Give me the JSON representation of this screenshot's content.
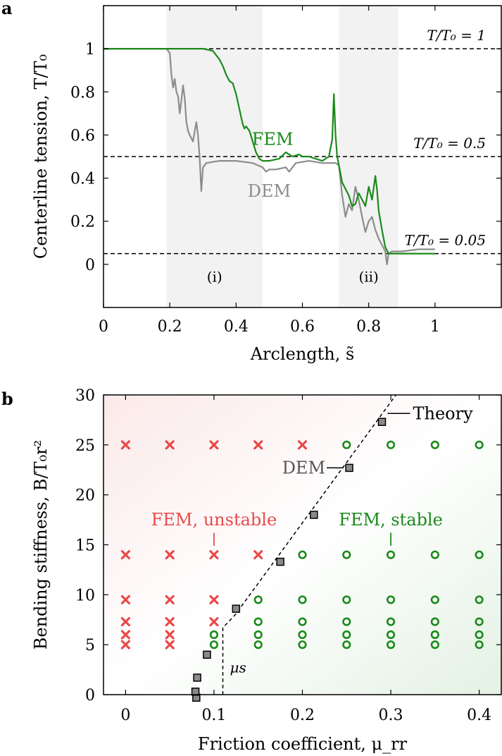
{
  "chart_data": [
    {
      "id": "a",
      "type": "line",
      "panel_label": "a",
      "xlabel": "Arclength, s̃",
      "ylabel": "Centerline tension, T/T₀",
      "xlim": [
        0,
        1.2
      ],
      "ylim": [
        -0.2,
        1.2
      ],
      "xticks": [
        0,
        0.2,
        0.4,
        0.6,
        0.8,
        1
      ],
      "xtick_labels": [
        "0",
        "0.2",
        "0.4",
        "0.6",
        "0.8",
        "1"
      ],
      "yticks": [
        0,
        0.2,
        0.4,
        0.6,
        0.8,
        1
      ],
      "ytick_labels": [
        "0",
        "0.2",
        "0.4",
        "0.6",
        "0.8",
        "1"
      ],
      "shaded_regions": [
        {
          "label": "(i)",
          "x0": 0.19,
          "x1": 0.48
        },
        {
          "label": "(ii)",
          "x0": 0.71,
          "x1": 0.89
        }
      ],
      "reference_lines": [
        {
          "y": 1,
          "label": "T/T₀ = 1"
        },
        {
          "y": 0.5,
          "label": "T/T₀ = 0.5"
        },
        {
          "y": 0.05,
          "label": "T/T₀ = 0.05"
        }
      ],
      "series": [
        {
          "name": "FEM",
          "color": "#1a8a1a",
          "x": [
            0,
            0.1,
            0.2,
            0.3,
            0.33,
            0.35,
            0.36,
            0.37,
            0.38,
            0.39,
            0.4,
            0.41,
            0.42,
            0.425,
            0.43,
            0.44,
            0.45,
            0.46,
            0.47,
            0.48,
            0.5,
            0.53,
            0.55,
            0.57,
            0.59,
            0.6,
            0.62,
            0.64,
            0.66,
            0.68,
            0.69,
            0.695,
            0.7,
            0.705,
            0.71,
            0.72,
            0.74,
            0.75,
            0.76,
            0.77,
            0.78,
            0.79,
            0.8,
            0.81,
            0.82,
            0.825,
            0.83,
            0.84,
            0.85,
            0.86,
            0.9,
            1.0
          ],
          "values": [
            1,
            1,
            1,
            1,
            0.99,
            0.95,
            0.92,
            0.88,
            0.85,
            0.84,
            0.79,
            0.72,
            0.65,
            0.63,
            0.64,
            0.62,
            0.57,
            0.52,
            0.49,
            0.48,
            0.48,
            0.49,
            0.52,
            0.5,
            0.51,
            0.5,
            0.5,
            0.49,
            0.48,
            0.5,
            0.58,
            0.79,
            0.6,
            0.5,
            0.46,
            0.38,
            0.32,
            0.27,
            0.28,
            0.33,
            0.3,
            0.27,
            0.36,
            0.3,
            0.41,
            0.35,
            0.25,
            0.16,
            0.08,
            0.05,
            0.05,
            0.05
          ]
        },
        {
          "name": "DEM",
          "color": "#8c8c8c",
          "x": [
            0,
            0.19,
            0.2,
            0.205,
            0.21,
            0.215,
            0.22,
            0.225,
            0.23,
            0.235,
            0.24,
            0.245,
            0.25,
            0.255,
            0.26,
            0.27,
            0.28,
            0.285,
            0.29,
            0.295,
            0.3,
            0.31,
            0.35,
            0.4,
            0.45,
            0.48,
            0.49,
            0.5,
            0.52,
            0.55,
            0.56,
            0.58,
            0.62,
            0.66,
            0.7,
            0.71,
            0.72,
            0.73,
            0.74,
            0.75,
            0.76,
            0.77,
            0.78,
            0.79,
            0.8,
            0.81,
            0.82,
            0.83,
            0.84,
            0.85,
            0.855,
            0.86,
            0.87,
            0.9,
            0.95,
            1.0
          ],
          "values": [
            1,
            1,
            0.98,
            0.88,
            0.82,
            0.86,
            0.8,
            0.78,
            0.7,
            0.76,
            0.83,
            0.77,
            0.66,
            0.62,
            0.6,
            0.57,
            0.66,
            0.6,
            0.5,
            0.34,
            0.45,
            0.47,
            0.48,
            0.48,
            0.47,
            0.45,
            0.43,
            0.44,
            0.44,
            0.45,
            0.43,
            0.47,
            0.48,
            0.47,
            0.47,
            0.46,
            0.32,
            0.22,
            0.28,
            0.25,
            0.36,
            0.3,
            0.22,
            0.15,
            0.2,
            0.22,
            0.16,
            0.12,
            0.09,
            0.06,
            0.0,
            0.05,
            0.06,
            0.06,
            0.07,
            0.07
          ]
        }
      ],
      "annotations": [
        {
          "text": "FEM",
          "x": 0.51,
          "y": 0.58,
          "color": "#1a8a1a"
        },
        {
          "text": "DEM",
          "x": 0.5,
          "y": 0.34,
          "color": "#8c8c8c"
        }
      ]
    },
    {
      "id": "b",
      "type": "scatter",
      "panel_label": "b",
      "xlabel": "Friction coefficient, μ_rr",
      "ylabel": "Bending stiffness, B/T₀r²",
      "xlim": [
        -0.025,
        0.425
      ],
      "ylim": [
        0,
        30
      ],
      "xticks": [
        0,
        0.1,
        0.2,
        0.3,
        0.4
      ],
      "xtick_labels": [
        "0",
        "0.1",
        "0.2",
        "0.3",
        "0.4"
      ],
      "yticks": [
        0,
        5,
        10,
        15,
        20,
        25,
        30
      ],
      "ytick_labels": [
        "0",
        "5",
        "10",
        "15",
        "20",
        "25",
        "30"
      ],
      "series": [
        {
          "name": "FEM, unstable",
          "marker": "x",
          "color": "#e84a4a",
          "points": [
            [
              0,
              25
            ],
            [
              0.05,
              25
            ],
            [
              0.1,
              25
            ],
            [
              0.15,
              25
            ],
            [
              0.2,
              25
            ],
            [
              0,
              14
            ],
            [
              0.05,
              14
            ],
            [
              0.1,
              14
            ],
            [
              0.15,
              14
            ],
            [
              0,
              9.5
            ],
            [
              0.05,
              9.5
            ],
            [
              0.1,
              9.5
            ],
            [
              0,
              7.3
            ],
            [
              0.05,
              7.3
            ],
            [
              0.1,
              7.3
            ],
            [
              0,
              6
            ],
            [
              0.05,
              6
            ],
            [
              0,
              5
            ],
            [
              0.05,
              5
            ]
          ]
        },
        {
          "name": "FEM, stable",
          "marker": "o",
          "color": "#1a8a1a",
          "points": [
            [
              0.25,
              25
            ],
            [
              0.3,
              25
            ],
            [
              0.35,
              25
            ],
            [
              0.4,
              25
            ],
            [
              0.2,
              14
            ],
            [
              0.25,
              14
            ],
            [
              0.3,
              14
            ],
            [
              0.35,
              14
            ],
            [
              0.4,
              14
            ],
            [
              0.15,
              9.5
            ],
            [
              0.2,
              9.5
            ],
            [
              0.25,
              9.5
            ],
            [
              0.3,
              9.5
            ],
            [
              0.35,
              9.5
            ],
            [
              0.4,
              9.5
            ],
            [
              0.15,
              7.3
            ],
            [
              0.2,
              7.3
            ],
            [
              0.25,
              7.3
            ],
            [
              0.3,
              7.3
            ],
            [
              0.35,
              7.3
            ],
            [
              0.4,
              7.3
            ],
            [
              0.1,
              6
            ],
            [
              0.15,
              6
            ],
            [
              0.2,
              6
            ],
            [
              0.25,
              6
            ],
            [
              0.3,
              6
            ],
            [
              0.35,
              6
            ],
            [
              0.4,
              6
            ],
            [
              0.1,
              5
            ],
            [
              0.15,
              5
            ],
            [
              0.2,
              5
            ],
            [
              0.25,
              5
            ],
            [
              0.3,
              5
            ],
            [
              0.35,
              5
            ],
            [
              0.4,
              5
            ]
          ]
        },
        {
          "name": "DEM",
          "marker": "s",
          "color": "#808080",
          "points": [
            [
              0.08,
              -0.3
            ],
            [
              0.079,
              0.3
            ],
            [
              0.081,
              1.7
            ],
            [
              0.092,
              4
            ],
            [
              0.125,
              8.6
            ],
            [
              0.175,
              13.3
            ],
            [
              0.213,
              18
            ],
            [
              0.253,
              22.7
            ],
            [
              0.29,
              27.3
            ]
          ]
        },
        {
          "name": "Theory",
          "type": "dashed-line",
          "color": "#000000",
          "points": [
            [
              0.11,
              0
            ],
            [
              0.11,
              6.7
            ],
            [
              0.124,
              8
            ],
            [
              0.31,
              30.5
            ]
          ]
        }
      ],
      "labels": {
        "unstable": "FEM, unstable",
        "stable": "FEM, stable",
        "dem": "DEM",
        "theory": "Theory",
        "mu_s": "μs"
      }
    }
  ]
}
